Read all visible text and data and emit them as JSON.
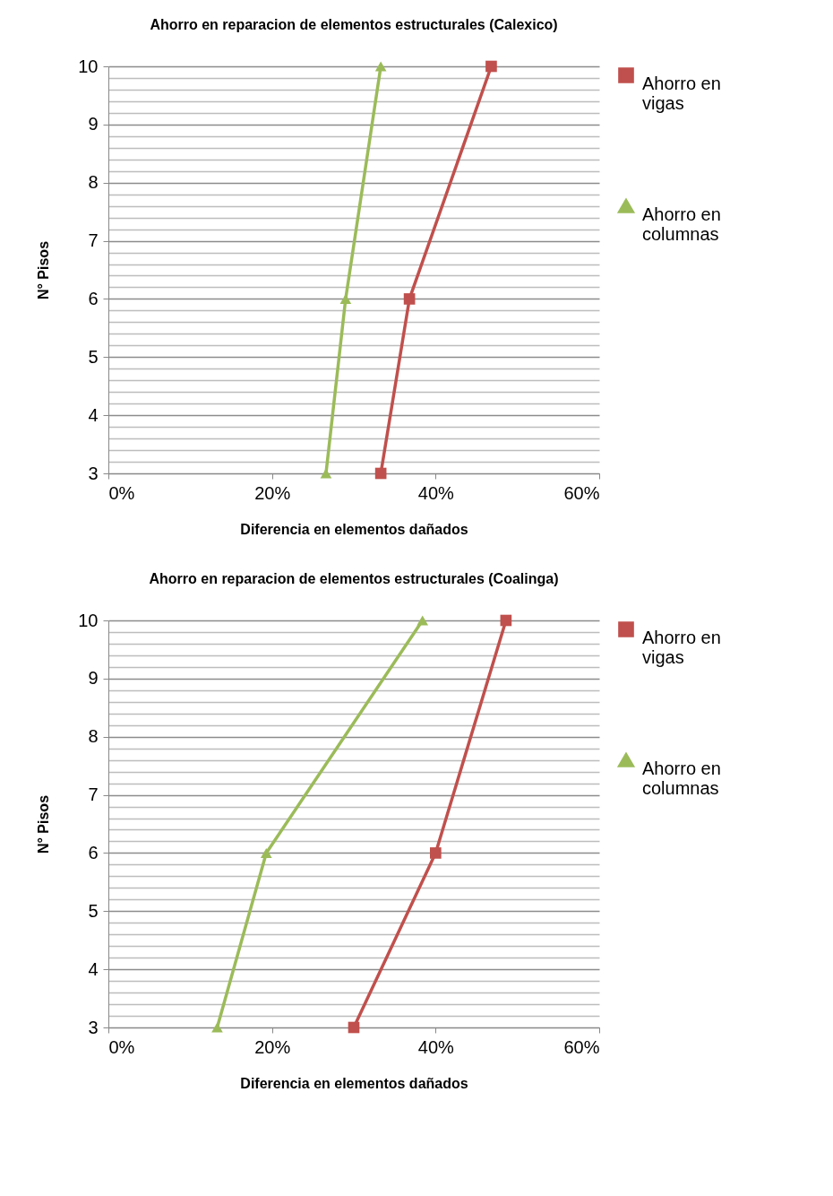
{
  "chart_data": [
    {
      "type": "line",
      "title": "Ahorro  en reparacion de elementos estructurales (Calexico)",
      "xlabel": "Diferencia en elementos dañados",
      "ylabel": "N° Pisos",
      "xlim": [
        0,
        60
      ],
      "xticks": [
        {
          "value": 0,
          "label": "0%"
        },
        {
          "value": 20,
          "label": "20%"
        },
        {
          "value": 40,
          "label": "40%"
        },
        {
          "value": 60,
          "label": "60%"
        }
      ],
      "ylim": [
        3,
        10
      ],
      "yticks": [
        3,
        {
          "value": 3.2,
          "label": null
        },
        {
          "value": 3.4,
          "label": null
        },
        {
          "value": 3.6,
          "label": null
        },
        {
          "value": 3.8,
          "label": null
        },
        4,
        {
          "value": 4.2,
          "label": null
        },
        {
          "value": 4.4,
          "label": null
        },
        {
          "value": 4.6,
          "label": null
        },
        {
          "value": 4.8,
          "label": null
        },
        5,
        {
          "value": 5.2,
          "label": null
        },
        {
          "value": 5.4,
          "label": null
        },
        {
          "value": 5.6,
          "label": null
        },
        {
          "value": 5.8,
          "label": null
        },
        6,
        {
          "value": 6.2,
          "label": null
        },
        {
          "value": 6.4,
          "label": null
        },
        {
          "value": 6.6,
          "label": null
        },
        {
          "value": 6.8,
          "label": null
        },
        7,
        {
          "value": 7.2,
          "label": null
        },
        {
          "value": 7.4,
          "label": null
        },
        {
          "value": 7.6,
          "label": null
        },
        {
          "value": 7.8,
          "label": null
        },
        8,
        {
          "value": 8.2,
          "label": null
        },
        {
          "value": 8.4,
          "label": null
        },
        {
          "value": 8.6,
          "label": null
        },
        {
          "value": 8.8,
          "label": null
        },
        9,
        {
          "value": 9.2,
          "label": null
        },
        {
          "value": 9.4,
          "label": null
        },
        {
          "value": 9.6,
          "label": null
        },
        {
          "value": 9.8,
          "label": null
        },
        10
      ],
      "grid": "y",
      "legend": "right",
      "line_style": "solid",
      "series": [
        {
          "name": "Ahorro en vigas",
          "color": "#c0504d",
          "marker": "square",
          "x": [
            33.3,
            36.8,
            46.8
          ],
          "values": [
            3,
            6,
            10
          ]
        },
        {
          "name": "Ahorro en columnas",
          "color": "#9bbb59",
          "marker": "triangle",
          "x": [
            26.6,
            29.0,
            33.3
          ],
          "values": [
            3,
            6,
            10
          ]
        }
      ]
    },
    {
      "type": "line",
      "title": "Ahorro  en reparacion de elementos estructurales (Coalinga)",
      "xlabel": "Diferencia en elementos dañados",
      "ylabel": "N° Pisos",
      "xlim": [
        0,
        60
      ],
      "xticks": [
        {
          "value": 0,
          "label": "0%"
        },
        {
          "value": 20,
          "label": "20%"
        },
        {
          "value": 40,
          "label": "40%"
        },
        {
          "value": 60,
          "label": "60%"
        }
      ],
      "ylim": [
        3,
        10
      ],
      "yticks": [
        3,
        {
          "value": 3.2,
          "label": null
        },
        {
          "value": 3.4,
          "label": null
        },
        {
          "value": 3.6,
          "label": null
        },
        {
          "value": 3.8,
          "label": null
        },
        4,
        {
          "value": 4.2,
          "label": null
        },
        {
          "value": 4.4,
          "label": null
        },
        {
          "value": 4.6,
          "label": null
        },
        {
          "value": 4.8,
          "label": null
        },
        5,
        {
          "value": 5.2,
          "label": null
        },
        {
          "value": 5.4,
          "label": null
        },
        {
          "value": 5.6,
          "label": null
        },
        {
          "value": 5.8,
          "label": null
        },
        6,
        {
          "value": 6.2,
          "label": null
        },
        {
          "value": 6.4,
          "label": null
        },
        {
          "value": 6.6,
          "label": null
        },
        {
          "value": 6.8,
          "label": null
        },
        7,
        {
          "value": 7.2,
          "label": null
        },
        {
          "value": 7.4,
          "label": null
        },
        {
          "value": 7.6,
          "label": null
        },
        {
          "value": 7.8,
          "label": null
        },
        8,
        {
          "value": 8.2,
          "label": null
        },
        {
          "value": 8.4,
          "label": null
        },
        {
          "value": 8.6,
          "label": null
        },
        {
          "value": 8.8,
          "label": null
        },
        9,
        {
          "value": 9.2,
          "label": null
        },
        {
          "value": 9.4,
          "label": null
        },
        {
          "value": 9.6,
          "label": null
        },
        {
          "value": 9.8,
          "label": null
        },
        10
      ],
      "grid": "y",
      "legend": "right",
      "line_style": "solid",
      "series": [
        {
          "name": "Ahorro en vigas",
          "color": "#c0504d",
          "marker": "square",
          "x": [
            30.0,
            40.0,
            48.6
          ],
          "values": [
            3,
            6,
            10
          ]
        },
        {
          "name": "Ahorro en columnas",
          "color": "#9bbb59",
          "marker": "triangle",
          "x": [
            13.3,
            19.3,
            38.4
          ],
          "values": [
            3,
            6,
            10
          ]
        }
      ]
    }
  ]
}
